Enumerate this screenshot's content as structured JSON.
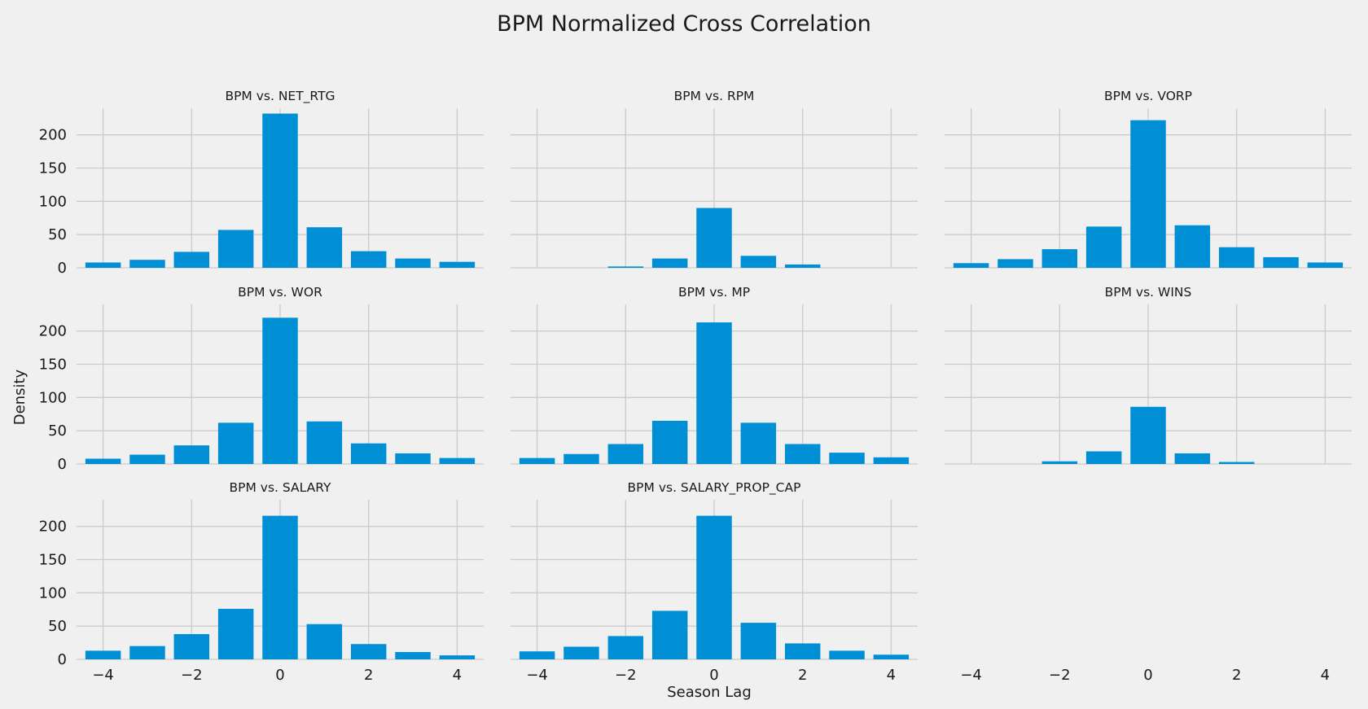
{
  "title": "BPM Normalized Cross Correlation",
  "xlabel": "Season Lag",
  "ylabel": "Density",
  "colors": {
    "background": "#f0f0f0",
    "bar": "#008fd5",
    "grid": "#cbcbcb",
    "text": "#1a1a1a"
  },
  "chart_data": {
    "type": "bar",
    "layout": "3x3 grid, shared x and y axes",
    "grid": true,
    "xlim": [
      -4.6,
      4.6
    ],
    "ylim": [
      0,
      240
    ],
    "x_ticks": [
      -4,
      -2,
      0,
      2,
      4
    ],
    "x_tick_labels": [
      "−4",
      "−2",
      "0",
      "2",
      "4"
    ],
    "y_ticks": [
      0,
      50,
      100,
      150,
      200
    ],
    "y_tick_labels": [
      "0",
      "50",
      "100",
      "150",
      "200"
    ],
    "categories": [
      -4,
      -3,
      -2,
      -1,
      0,
      1,
      2,
      3,
      4
    ],
    "series": [
      {
        "subplot_title": "BPM vs. NET_RTG",
        "values": [
          8,
          12,
          24,
          57,
          232,
          61,
          25,
          14,
          9
        ]
      },
      {
        "subplot_title": "BPM vs. RPM",
        "values": [
          0,
          0,
          2,
          14,
          90,
          18,
          5,
          0,
          0
        ]
      },
      {
        "subplot_title": "BPM vs. VORP",
        "values": [
          7,
          13,
          28,
          62,
          222,
          64,
          31,
          16,
          8
        ]
      },
      {
        "subplot_title": "BPM vs. WOR",
        "values": [
          8,
          14,
          28,
          62,
          220,
          64,
          31,
          16,
          9
        ]
      },
      {
        "subplot_title": "BPM vs. MP",
        "values": [
          9,
          15,
          30,
          65,
          213,
          62,
          30,
          17,
          10
        ]
      },
      {
        "subplot_title": "BPM vs. WINS",
        "values": [
          0,
          0,
          4,
          19,
          86,
          16,
          3,
          0,
          0
        ]
      },
      {
        "subplot_title": "BPM vs. SALARY",
        "values": [
          13,
          20,
          38,
          76,
          216,
          53,
          23,
          11,
          6
        ]
      },
      {
        "subplot_title": "BPM vs. SALARY_PROP_CAP",
        "values": [
          12,
          19,
          35,
          73,
          216,
          55,
          24,
          13,
          7
        ]
      }
    ]
  }
}
